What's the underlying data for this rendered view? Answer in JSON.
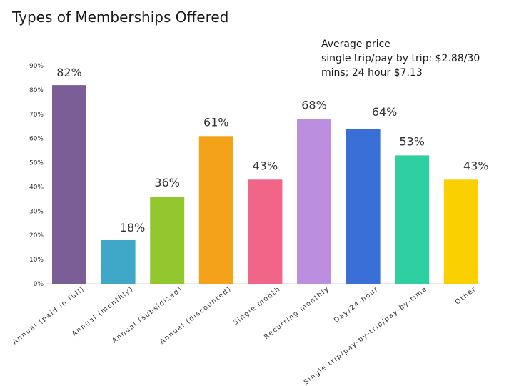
{
  "chart_data": {
    "type": "bar",
    "title": "Types of Memberships Offered",
    "annotation": {
      "line1": "Average price",
      "line2": "single trip/pay by trip: $2.88/30",
      "line3": "mins; 24 hour $7.13"
    },
    "categories": [
      "Annual (paid in full)",
      "Annual (monthly)",
      "Annual (subsidized)",
      "Annual (discounted)",
      "Single month",
      "Recurring monthly",
      "Day/24-hour",
      "Single trip/pay-by-trip/pay-by-time",
      "Other"
    ],
    "values": [
      82,
      18,
      36,
      61,
      43,
      68,
      64,
      53,
      43
    ],
    "data_labels": [
      "82%",
      "18%",
      "36%",
      "61%",
      "43%",
      "68%",
      "64%",
      "53%",
      "43%"
    ],
    "colors": [
      "#7b5e95",
      "#3fa8c8",
      "#92c82e",
      "#f5a21b",
      "#f06588",
      "#bb8ee0",
      "#3b6fd8",
      "#2ecfa0",
      "#fbd000"
    ],
    "ylim": [
      0,
      90
    ],
    "yticks": [
      0,
      10,
      20,
      30,
      40,
      50,
      60,
      70,
      80,
      90
    ],
    "ytick_labels": [
      "0%",
      "10%",
      "20%",
      "30%",
      "40%",
      "50%",
      "60%",
      "70%",
      "80%",
      "90%"
    ],
    "xlabel": "",
    "ylabel": "",
    "grid": false,
    "legend": "none"
  }
}
